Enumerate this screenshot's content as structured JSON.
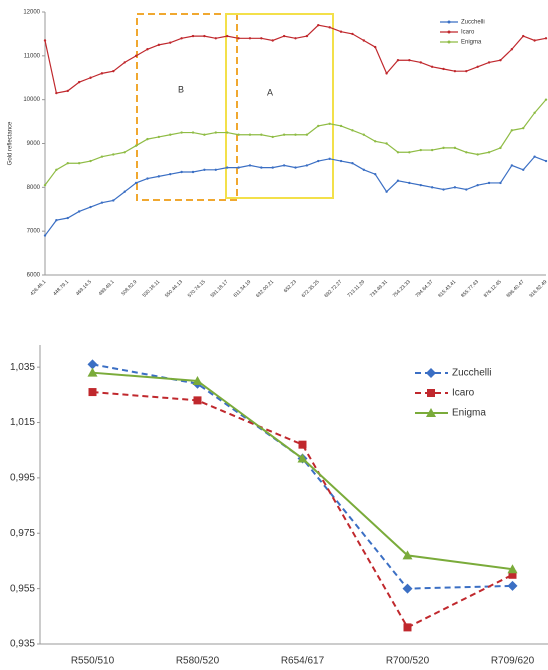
{
  "chart_data": [
    {
      "type": "line",
      "ylabel": "Gold reflectance",
      "categories": [
        "426.46.1",
        null,
        "448.79.1",
        null,
        "469.14.5",
        null,
        "489.49.1",
        null,
        "508.82.9",
        null,
        "530.18.11",
        null,
        "550.44.13",
        null,
        "570.74.15",
        null,
        "591.18.17",
        null,
        "611.34.19",
        null,
        "632.00.21",
        null,
        "652.23",
        null,
        "672.35.25",
        null,
        "692.72.27",
        null,
        "713.11.29",
        null,
        "733.49.31",
        null,
        "754.23.33",
        null,
        "794.64.37",
        null,
        "815.43.41",
        null,
        "855.77.43",
        null,
        "876.12.45",
        null,
        "896.40.47",
        null,
        "916.82.49"
      ],
      "series": [
        {
          "name": "Zucchelli",
          "color": "#3b6fc4",
          "values": [
            6900,
            7250,
            7300,
            7450,
            7550,
            7650,
            7700,
            7900,
            8100,
            8200,
            8250,
            8300,
            8350,
            8350,
            8400,
            8400,
            8450,
            8450,
            8500,
            8450,
            8450,
            8500,
            8450,
            8500,
            8600,
            8650,
            8600,
            8550,
            8400,
            8300,
            7900,
            8150,
            8100,
            8050,
            8000,
            7950,
            8000,
            7950,
            8050,
            8100,
            8100,
            8500,
            8400,
            8700,
            8600
          ]
        },
        {
          "name": "Icaro",
          "color": "#c0282d",
          "values": [
            11350,
            10150,
            10200,
            10400,
            10500,
            10600,
            10650,
            10850,
            11000,
            11150,
            11250,
            11300,
            11400,
            11450,
            11450,
            11400,
            11450,
            11400,
            11400,
            11400,
            11350,
            11450,
            11400,
            11450,
            11700,
            11650,
            11550,
            11500,
            11350,
            11200,
            10600,
            10900,
            10900,
            10850,
            10750,
            10700,
            10650,
            10650,
            10750,
            10850,
            10900,
            11150,
            11450,
            11350,
            11400
          ]
        },
        {
          "name": "Enigma",
          "color": "#8fbc45",
          "values": [
            8050,
            8400,
            8550,
            8550,
            8600,
            8700,
            8750,
            8800,
            8950,
            9100,
            9150,
            9200,
            9250,
            9250,
            9200,
            9250,
            9250,
            9200,
            9200,
            9200,
            9150,
            9200,
            9200,
            9200,
            9400,
            9450,
            9400,
            9300,
            9200,
            9050,
            9000,
            8800,
            8800,
            8850,
            8850,
            8900,
            8900,
            8800,
            8750,
            8800,
            8900,
            9300,
            9350,
            9700,
            10000
          ]
        }
      ],
      "annotations": [
        "B",
        "A"
      ],
      "ylim": [
        6000,
        12000
      ],
      "yticks": [
        6000,
        7000,
        8000,
        9000,
        10000,
        11000,
        12000
      ]
    },
    {
      "type": "line",
      "categories": [
        "R550/510",
        "R580/520",
        "R654/617",
        "R700/520",
        "R709/620"
      ],
      "series": [
        {
          "name": "Zucchelli",
          "color": "#3b6fc4",
          "dash": true,
          "marker": "diamond",
          "values": [
            1.036,
            1.029,
            1.002,
            0.955,
            0.956
          ]
        },
        {
          "name": "Icaro",
          "color": "#c0282d",
          "dash": true,
          "marker": "square",
          "values": [
            1.026,
            1.023,
            1.007,
            0.941,
            0.96
          ]
        },
        {
          "name": "Enigma",
          "color": "#7aab3a",
          "dash": false,
          "marker": "triangle",
          "values": [
            1.033,
            1.03,
            1.002,
            0.967,
            0.962
          ]
        }
      ],
      "ylim": [
        0.935,
        1.043
      ],
      "yticks": [
        {
          "value": 0.935,
          "label": "0,935"
        },
        {
          "value": 0.955,
          "label": "0,955"
        },
        {
          "value": 0.975,
          "label": "0,975"
        },
        {
          "value": 0.995,
          "label": "0,995"
        },
        {
          "value": 1.015,
          "label": "1,015"
        },
        {
          "value": 1.035,
          "label": "1,035"
        }
      ]
    }
  ]
}
